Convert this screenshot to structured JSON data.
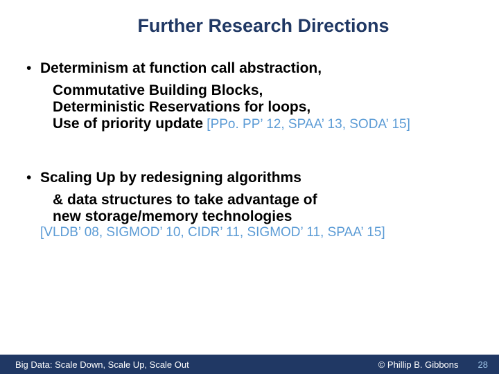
{
  "colors": {
    "title": "#203864",
    "body": "#000000",
    "ref": "#5b9bd5",
    "footer_bg": "#203864",
    "footer_text": "#ffffff",
    "footer_page": "#9dc3e6"
  },
  "fonts": {
    "title_size": "27px",
    "body_size": "21px",
    "ref_size": "19px",
    "footer_size": "13px"
  },
  "title": "Further Research Directions",
  "bullet1": {
    "line1_a": "Determinism",
    "line1_b": " at function call abstraction,",
    "line2": "Commutative Building Blocks,",
    "line3": "Deterministic Reservations for loops,",
    "line4": "Use of priority update",
    "ref": " [PPo. PP’ 12, SPAA’ 13, SODA’ 15]"
  },
  "bullet2": {
    "line1_a": "Scaling Up",
    "line1_b": " by redesigning algorithms",
    "line2": "& data structures to take advantage of",
    "line3": "new storage/memory technologies",
    "ref": "[VLDB’ 08, SIGMOD’ 10, CIDR’ 11, SIGMOD’ 11, SPAA’ 15]"
  },
  "footer": {
    "left": "Big Data: Scale Down, Scale Up, Scale Out",
    "right": "© Phillip B. Gibbons",
    "page": "28"
  }
}
